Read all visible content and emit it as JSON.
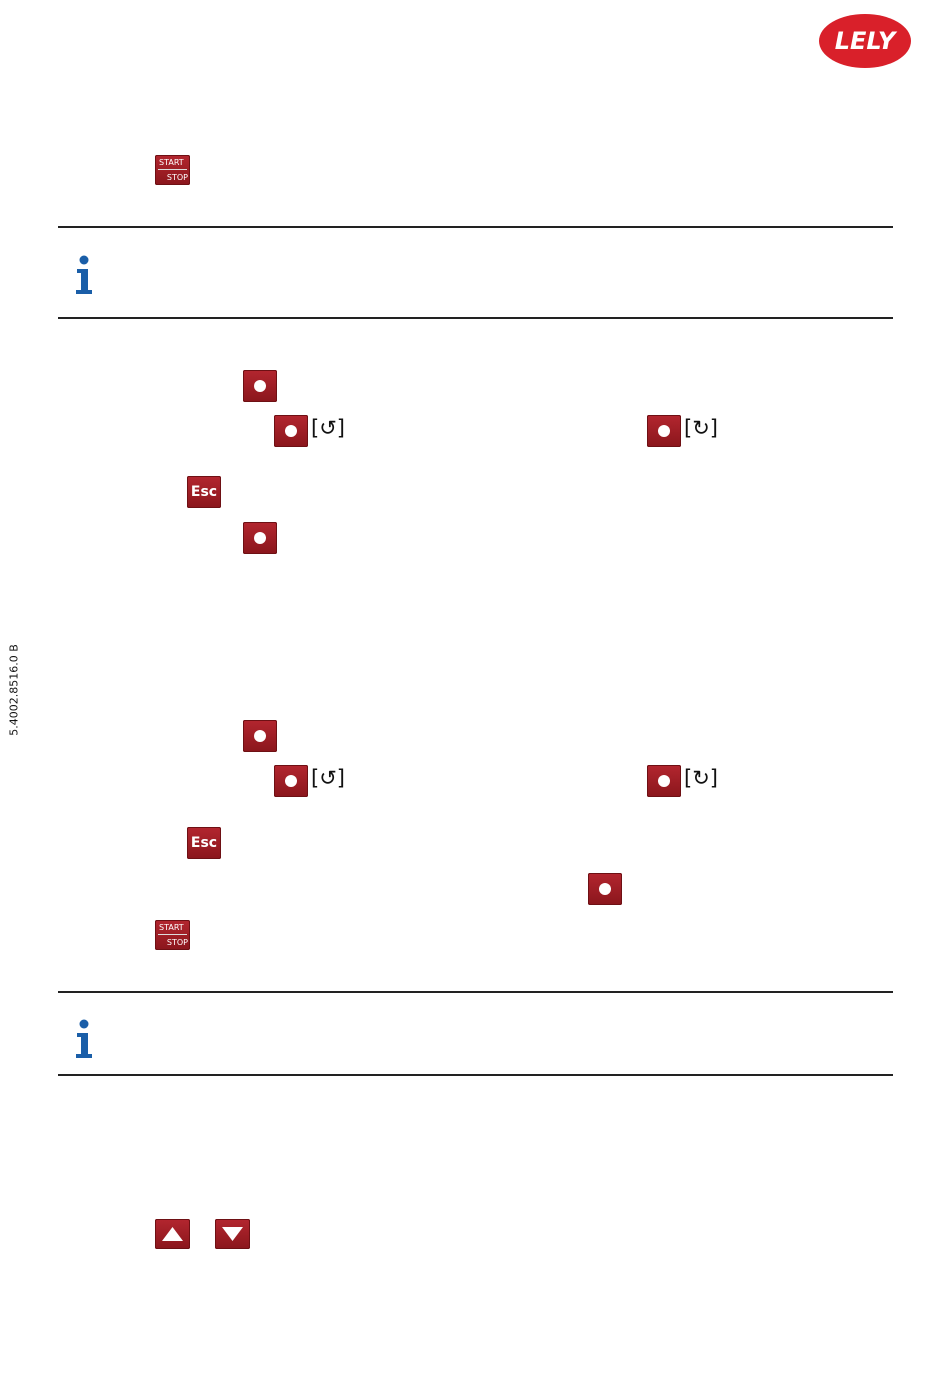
{
  "logo": "LELY",
  "doc_code": "5.4002.8516.0 B",
  "buttons": {
    "start": "START",
    "stop": "STOP",
    "esc": "Esc",
    "rotate_ccw": "[↺]",
    "rotate_cw": "[↻]"
  }
}
